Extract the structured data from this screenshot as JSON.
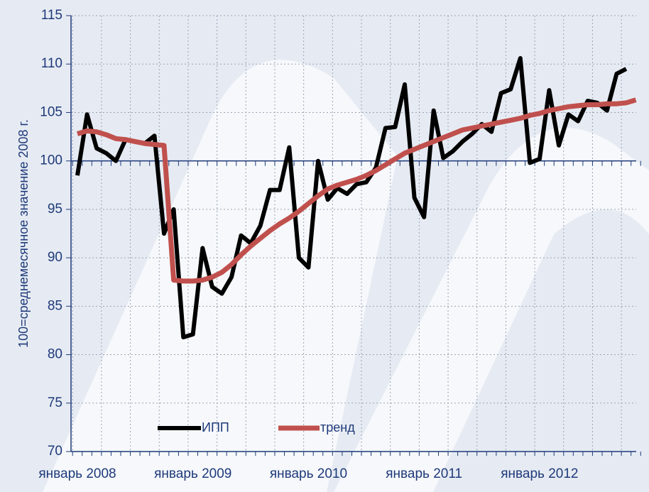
{
  "chart_data": {
    "type": "line",
    "ylabel": "100=среднемесячное значение 2008 г.",
    "categories": [
      "январь 2008",
      null,
      null,
      null,
      null,
      null,
      null,
      null,
      null,
      null,
      null,
      null,
      "январь 2009",
      null,
      null,
      null,
      null,
      null,
      null,
      null,
      null,
      null,
      null,
      null,
      "январь 2010",
      null,
      null,
      null,
      null,
      null,
      null,
      null,
      null,
      null,
      null,
      null,
      "январь 2011",
      null,
      null,
      null,
      null,
      null,
      null,
      null,
      null,
      null,
      null,
      null,
      "январь 2012",
      null,
      null,
      null,
      null,
      null,
      null,
      null,
      null,
      null,
      null
    ],
    "series": [
      {
        "name": "ИПП",
        "color": "#000000",
        "values": [
          98.5,
          104.8,
          101.3,
          100.8,
          100.0,
          102.2,
          102.0,
          101.8,
          102.6,
          92.5,
          95.0,
          81.8,
          82.1,
          91.0,
          87.0,
          86.3,
          88.0,
          92.3,
          91.5,
          93.3,
          97.0,
          97.0,
          101.4,
          90.0,
          89.0,
          100.0,
          96.0,
          97.2,
          96.6,
          97.6,
          97.8,
          99.3,
          103.4,
          103.5,
          107.9,
          96.2,
          94.2,
          105.2,
          100.3,
          101.0,
          102.0,
          102.8,
          103.8,
          103.0,
          107.0,
          107.4,
          110.6,
          99.8,
          100.2,
          107.3,
          101.6,
          104.8,
          104.1,
          106.2,
          106.0,
          105.2,
          109.0,
          109.5,
          null
        ]
      },
      {
        "name": "тренд",
        "color": "#c0504d",
        "values": [
          102.8,
          103.1,
          103.0,
          102.7,
          102.3,
          102.2,
          102.0,
          101.8,
          101.7,
          101.6,
          87.7,
          87.6,
          87.6,
          87.7,
          88.0,
          88.5,
          89.3,
          90.3,
          91.2,
          92.0,
          92.8,
          93.5,
          94.1,
          94.8,
          95.6,
          96.4,
          97.1,
          97.5,
          97.8,
          98.1,
          98.5,
          99.0,
          99.6,
          100.2,
          100.8,
          101.2,
          101.6,
          102.0,
          102.4,
          102.8,
          103.2,
          103.4,
          103.6,
          103.8,
          104.0,
          104.2,
          104.4,
          104.7,
          104.9,
          105.2,
          105.4,
          105.6,
          105.7,
          105.8,
          105.8,
          105.9,
          105.9,
          106.0,
          106.3
        ]
      }
    ],
    "ylim": [
      70,
      115
    ],
    "yticks": [
      70,
      75,
      80,
      85,
      90,
      95,
      100,
      105,
      110,
      115
    ],
    "grid": true
  }
}
